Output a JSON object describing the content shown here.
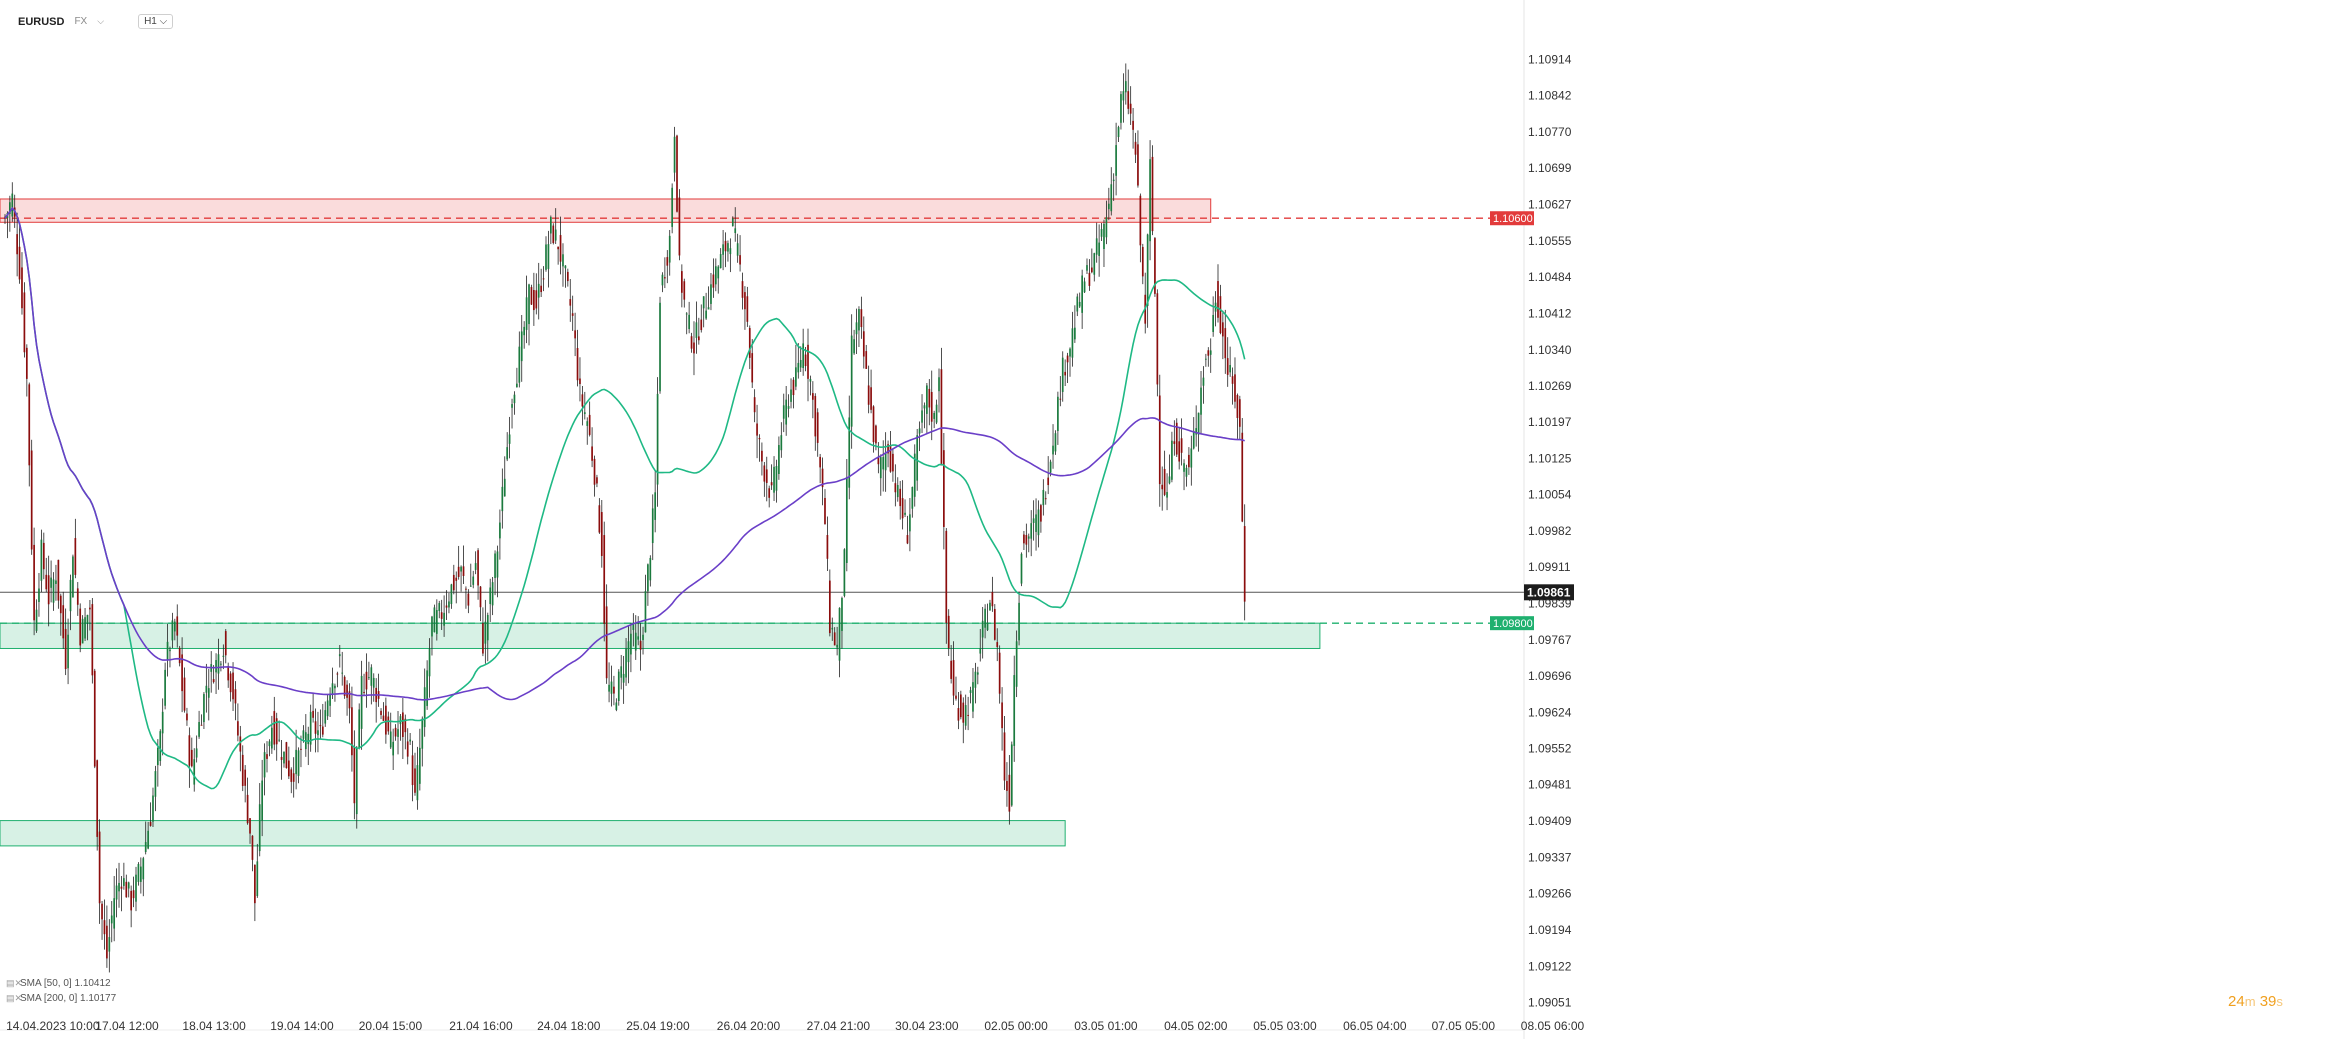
{
  "header": {
    "symbol": "EURUSD",
    "market": "FX",
    "timeframe": "H1"
  },
  "indicators": [
    {
      "label": "SMA [50, 0] 1.10412",
      "color": "#1fb985"
    },
    {
      "label": "SMA [200, 0] 1.10177",
      "color": "#6a3fc8"
    }
  ],
  "countdown": {
    "minutes": "24",
    "m_unit": "m",
    "seconds": "39",
    "s_unit": "s"
  },
  "chart_data": {
    "type": "candlestick",
    "ylim": [
      1.0902,
      1.1096
    ],
    "y_ticks": [
      "1.10914",
      "1.10842",
      "1.10770",
      "1.10699",
      "1.10627",
      "1.10555",
      "1.10484",
      "1.10412",
      "1.10340",
      "1.10269",
      "1.10197",
      "1.10125",
      "1.10054",
      "1.09982",
      "1.09911",
      "1.09839",
      "1.09767",
      "1.09696",
      "1.09624",
      "1.09552",
      "1.09481",
      "1.09409",
      "1.09337",
      "1.09266",
      "1.09194",
      "1.09122",
      "1.09051"
    ],
    "x_ticks": [
      "14.04.2023  10:00",
      "17.04  12:00",
      "18.04  13:00",
      "19.04  14:00",
      "20.04  15:00",
      "21.04  16:00",
      "24.04  18:00",
      "25.04  19:00",
      "26.04  20:00",
      "27.04  21:00",
      "30.04  23:00",
      "02.05  00:00",
      "03.05  01:00",
      "04.05  02:00",
      "05.05  03:00",
      "06.05  04:00",
      "07.05  05:00",
      "08.05  06:00"
    ],
    "last_price": {
      "label": "1.09861",
      "value": 1.09861
    },
    "levels": [
      {
        "label": "1.10600",
        "value": 1.106,
        "color": "#e23b3b"
      },
      {
        "label": "1.09800",
        "value": 1.098,
        "color": "#1fb06f"
      }
    ],
    "zones": [
      {
        "from": 1.10592,
        "to": 1.10638,
        "t_start": 0,
        "t_end": 497,
        "color": "#e23b3b"
      },
      {
        "from": 1.0975,
        "to": 1.098,
        "t_start": 0,
        "t_end": 542,
        "color": "#1fb06f"
      },
      {
        "from": 1.0936,
        "to": 1.0941,
        "t_start": 0,
        "t_end": 437,
        "color": "#1fb06f"
      }
    ],
    "bars": 520,
    "path_anchors": [
      [
        0,
        1.106
      ],
      [
        3,
        1.1064
      ],
      [
        6,
        1.105
      ],
      [
        9,
        1.1028
      ],
      [
        12,
        1.098
      ],
      [
        15,
        1.0994
      ],
      [
        18,
        1.0985
      ],
      [
        21,
        1.099
      ],
      [
        25,
        1.0973
      ],
      [
        28,
        1.0995
      ],
      [
        31,
        1.0978
      ],
      [
        35,
        1.0983
      ],
      [
        39,
        1.0925
      ],
      [
        42,
        1.0914
      ],
      [
        45,
        1.0926
      ],
      [
        48,
        1.093
      ],
      [
        52,
        1.0925
      ],
      [
        56,
        1.0932
      ],
      [
        60,
        1.0942
      ],
      [
        64,
        1.0957
      ],
      [
        66,
        1.0972
      ],
      [
        70,
        1.098
      ],
      [
        74,
        1.0963
      ],
      [
        77,
        1.095
      ],
      [
        80,
        1.096
      ],
      [
        83,
        1.0968
      ],
      [
        87,
        1.0972
      ],
      [
        90,
        1.0976
      ],
      [
        94,
        1.0966
      ],
      [
        98,
        1.095
      ],
      [
        101,
        1.0939
      ],
      [
        103,
        1.0925
      ],
      [
        106,
        1.095
      ],
      [
        110,
        1.096
      ],
      [
        114,
        1.0955
      ],
      [
        118,
        1.095
      ],
      [
        122,
        1.0955
      ],
      [
        126,
        1.096
      ],
      [
        130,
        1.0958
      ],
      [
        134,
        1.0968
      ],
      [
        138,
        1.0972
      ],
      [
        142,
        1.0962
      ],
      [
        144,
        1.0945
      ],
      [
        147,
        1.0968
      ],
      [
        151,
        1.097
      ],
      [
        155,
        1.0963
      ],
      [
        159,
        1.0956
      ],
      [
        163,
        1.096
      ],
      [
        167,
        1.0955
      ],
      [
        169,
        1.0945
      ],
      [
        172,
        1.096
      ],
      [
        176,
        1.098
      ],
      [
        180,
        1.0982
      ],
      [
        184,
        1.0987
      ],
      [
        188,
        1.099
      ],
      [
        191,
        1.0985
      ],
      [
        194,
        1.0992
      ],
      [
        197,
        1.0976
      ],
      [
        200,
        1.0985
      ],
      [
        203,
        1.0995
      ],
      [
        206,
        1.101
      ],
      [
        209,
        1.1025
      ],
      [
        213,
        1.1035
      ],
      [
        216,
        1.1045
      ],
      [
        219,
        1.1043
      ],
      [
        222,
        1.105
      ],
      [
        225,
        1.1058
      ],
      [
        228,
        1.1055
      ],
      [
        231,
        1.1048
      ],
      [
        234,
        1.104
      ],
      [
        237,
        1.1025
      ],
      [
        240,
        1.102
      ],
      [
        243,
        1.101
      ],
      [
        246,
        1.0995
      ],
      [
        248,
        1.0968
      ],
      [
        251,
        1.0965
      ],
      [
        254,
        1.097
      ],
      [
        258,
        1.0978
      ],
      [
        262,
        1.0975
      ],
      [
        265,
        1.099
      ],
      [
        268,
        1.1005
      ],
      [
        270,
        1.1045
      ],
      [
        274,
        1.1056
      ],
      [
        276,
        1.1078
      ],
      [
        278,
        1.105
      ],
      [
        281,
        1.104
      ],
      [
        284,
        1.1035
      ],
      [
        288,
        1.1042
      ],
      [
        292,
        1.1048
      ],
      [
        296,
        1.1053
      ],
      [
        300,
        1.1058
      ],
      [
        303,
        1.105
      ],
      [
        306,
        1.104
      ],
      [
        309,
        1.102
      ],
      [
        312,
        1.1012
      ],
      [
        316,
        1.1005
      ],
      [
        320,
        1.1018
      ],
      [
        323,
        1.1025
      ],
      [
        326,
        1.1028
      ],
      [
        329,
        1.1035
      ],
      [
        332,
        1.1028
      ],
      [
        335,
        1.1015
      ],
      [
        338,
        1.1
      ],
      [
        340,
        1.098
      ],
      [
        343,
        1.0975
      ],
      [
        346,
        1.0992
      ],
      [
        349,
        1.1035
      ],
      [
        352,
        1.104
      ],
      [
        356,
        1.1025
      ],
      [
        360,
        1.101
      ],
      [
        364,
        1.1015
      ],
      [
        368,
        1.1005
      ],
      [
        372,
        1.0998
      ],
      [
        376,
        1.1015
      ],
      [
        380,
        1.1025
      ],
      [
        383,
        1.102
      ],
      [
        385,
        1.103
      ],
      [
        388,
        1.098
      ],
      [
        391,
        1.0965
      ],
      [
        395,
        1.0962
      ],
      [
        399,
        1.0966
      ],
      [
        403,
        1.0978
      ],
      [
        406,
        1.0985
      ],
      [
        409,
        1.0975
      ],
      [
        412,
        1.095
      ],
      [
        414,
        1.0945
      ],
      [
        416,
        1.097
      ],
      [
        419,
        1.0995
      ],
      [
        423,
        1.0998
      ],
      [
        427,
        1.1002
      ],
      [
        430,
        1.101
      ],
      [
        433,
        1.102
      ],
      [
        436,
        1.103
      ],
      [
        439,
        1.1035
      ],
      [
        442,
        1.1042
      ],
      [
        445,
        1.1048
      ],
      [
        448,
        1.105
      ],
      [
        451,
        1.1055
      ],
      [
        454,
        1.106
      ],
      [
        457,
        1.107
      ],
      [
        460,
        1.1083
      ],
      [
        462,
        1.1085
      ],
      [
        464,
        1.108
      ],
      [
        466,
        1.1073
      ],
      [
        468,
        1.1055
      ],
      [
        470,
        1.104
      ],
      [
        472,
        1.107
      ],
      [
        474,
        1.1045
      ],
      [
        476,
        1.101
      ],
      [
        479,
        1.1005
      ],
      [
        482,
        1.1018
      ],
      [
        485,
        1.1012
      ],
      [
        488,
        1.101
      ],
      [
        491,
        1.102
      ],
      [
        494,
        1.103
      ],
      [
        497,
        1.1035
      ],
      [
        499,
        1.1045
      ],
      [
        501,
        1.104
      ],
      [
        504,
        1.103
      ],
      [
        507,
        1.1025
      ],
      [
        509,
        1.1018
      ],
      [
        510,
        1.1
      ],
      [
        511,
        1.0986
      ]
    ]
  }
}
